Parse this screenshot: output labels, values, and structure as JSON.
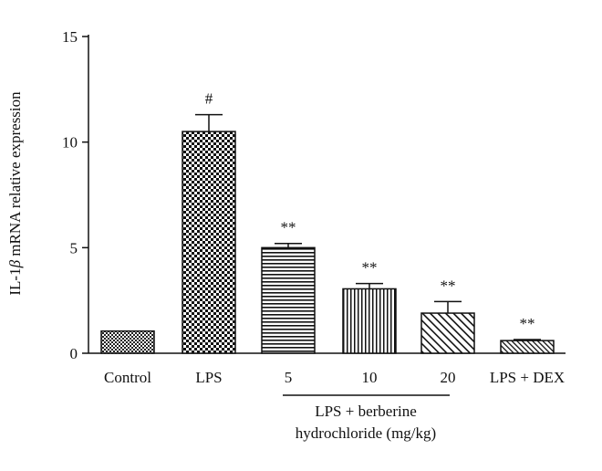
{
  "chart_data": {
    "type": "bar",
    "categories": [
      "Control",
      "LPS",
      "5",
      "10",
      "20",
      "LPS + DEX"
    ],
    "values": [
      1.05,
      10.5,
      5.0,
      3.05,
      1.9,
      0.6
    ],
    "errors": [
      0.0,
      0.8,
      0.2,
      0.25,
      0.55,
      0.05
    ],
    "annotations": [
      "",
      "#",
      "**",
      "**",
      "**",
      "**"
    ],
    "ylabel_prefix": "IL-1",
    "ylabel_symbol": "β",
    "ylabel_suffix": " mRNA relative expression",
    "ylim": [
      0,
      15
    ],
    "yticks": [
      0,
      5,
      10,
      15
    ],
    "group_label_line1": "LPS + berberine",
    "group_label_line2": "hydrochloride (mg/kg)",
    "grid": false,
    "patterns": [
      "fine-check",
      "checker",
      "horizontal",
      "vertical",
      "diagonal",
      "diagonal-fine"
    ]
  }
}
